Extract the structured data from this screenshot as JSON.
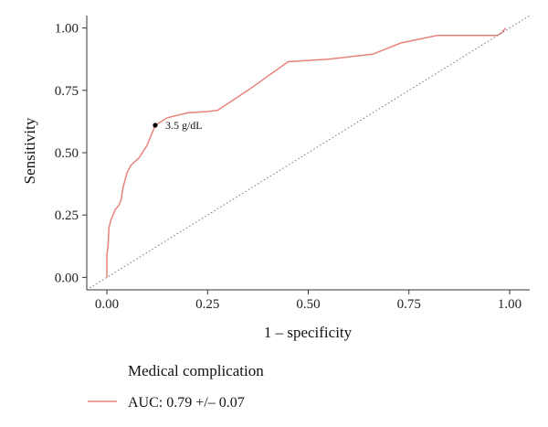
{
  "chart_data": {
    "type": "line",
    "xlabel": "1 – specificity",
    "ylabel": "Sensitivity",
    "xlim": [
      -0.05,
      1.05
    ],
    "ylim": [
      -0.05,
      1.05
    ],
    "x_ticks": [
      0.0,
      0.25,
      0.5,
      0.75,
      1.0
    ],
    "x_tick_labels": [
      "0.00",
      "0.25",
      "0.50",
      "0.75",
      "1.00"
    ],
    "y_ticks": [
      0.0,
      0.25,
      0.5,
      0.75,
      1.0
    ],
    "y_tick_labels": [
      "0.00",
      "0.25",
      "0.50",
      "0.75",
      "1.00"
    ],
    "grid": false,
    "legend_title": "Medical complication",
    "legend_position": "bottom",
    "series": [
      {
        "name": "AUC: 0.79 +/– 0.07",
        "color": "#e8837c",
        "x": [
          0.0,
          0.0,
          0.003,
          0.005,
          0.01,
          0.015,
          0.02,
          0.03,
          0.035,
          0.04,
          0.05,
          0.06,
          0.08,
          0.1,
          0.12,
          0.15,
          0.2,
          0.25,
          0.275,
          0.35,
          0.45,
          0.55,
          0.66,
          0.73,
          0.82,
          0.9,
          0.97,
          0.98,
          0.99
        ],
        "y": [
          0.0,
          0.09,
          0.13,
          0.2,
          0.23,
          0.25,
          0.27,
          0.29,
          0.31,
          0.36,
          0.42,
          0.45,
          0.48,
          0.53,
          0.61,
          0.64,
          0.66,
          0.665,
          0.67,
          0.75,
          0.865,
          0.875,
          0.895,
          0.94,
          0.97,
          0.97,
          0.97,
          0.98,
          1.0
        ]
      },
      {
        "name": "",
        "color": "#777777",
        "style": "dotted",
        "x": [
          -0.05,
          1.05
        ],
        "y": [
          -0.05,
          1.05
        ]
      }
    ],
    "annotations": [
      {
        "text": "3.5 g/dL",
        "x": 0.12,
        "y": 0.61
      }
    ]
  }
}
